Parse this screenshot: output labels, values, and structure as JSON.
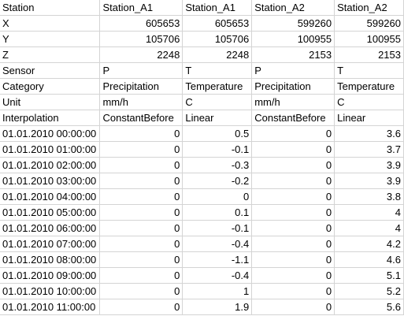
{
  "sheet": {
    "header_rows": [
      [
        "Station",
        "Station_A1",
        "Station_A1",
        "Station_A2",
        "Station_A2"
      ],
      [
        "X",
        "605653",
        "605653",
        "599260",
        "599260"
      ],
      [
        "Y",
        "105706",
        "105706",
        "100955",
        "100955"
      ],
      [
        "Z",
        "2248",
        "2248",
        "2153",
        "2153"
      ],
      [
        "Sensor",
        "P",
        "T",
        "P",
        "T"
      ],
      [
        "Category",
        "Precipitation",
        "Temperature",
        "Precipitation",
        "Temperature"
      ],
      [
        "Unit",
        "mm/h",
        "C",
        "mm/h",
        "C"
      ],
      [
        "Interpolation",
        "ConstantBefore",
        "Linear",
        "ConstantBefore",
        "Linear"
      ]
    ],
    "data_rows": [
      [
        "01.01.2010 00:00:00",
        "0",
        "0.5",
        "0",
        "3.6"
      ],
      [
        "01.01.2010 01:00:00",
        "0",
        "-0.1",
        "0",
        "3.7"
      ],
      [
        "01.01.2010 02:00:00",
        "0",
        "-0.3",
        "0",
        "3.9"
      ],
      [
        "01.01.2010 03:00:00",
        "0",
        "-0.2",
        "0",
        "3.9"
      ],
      [
        "01.01.2010 04:00:00",
        "0",
        "0",
        "0",
        "3.8"
      ],
      [
        "01.01.2010 05:00:00",
        "0",
        "0.1",
        "0",
        "4"
      ],
      [
        "01.01.2010 06:00:00",
        "0",
        "-0.1",
        "0",
        "4"
      ],
      [
        "01.01.2010 07:00:00",
        "0",
        "-0.4",
        "0",
        "4.2"
      ],
      [
        "01.01.2010 08:00:00",
        "0",
        "-1.1",
        "0",
        "4.6"
      ],
      [
        "01.01.2010 09:00:00",
        "0",
        "-0.4",
        "0",
        "5.1"
      ],
      [
        "01.01.2010 10:00:00",
        "0",
        "1",
        "0",
        "5.2"
      ],
      [
        "01.01.2010 11:00:00",
        "0",
        "1.9",
        "0",
        "5.6"
      ]
    ]
  }
}
